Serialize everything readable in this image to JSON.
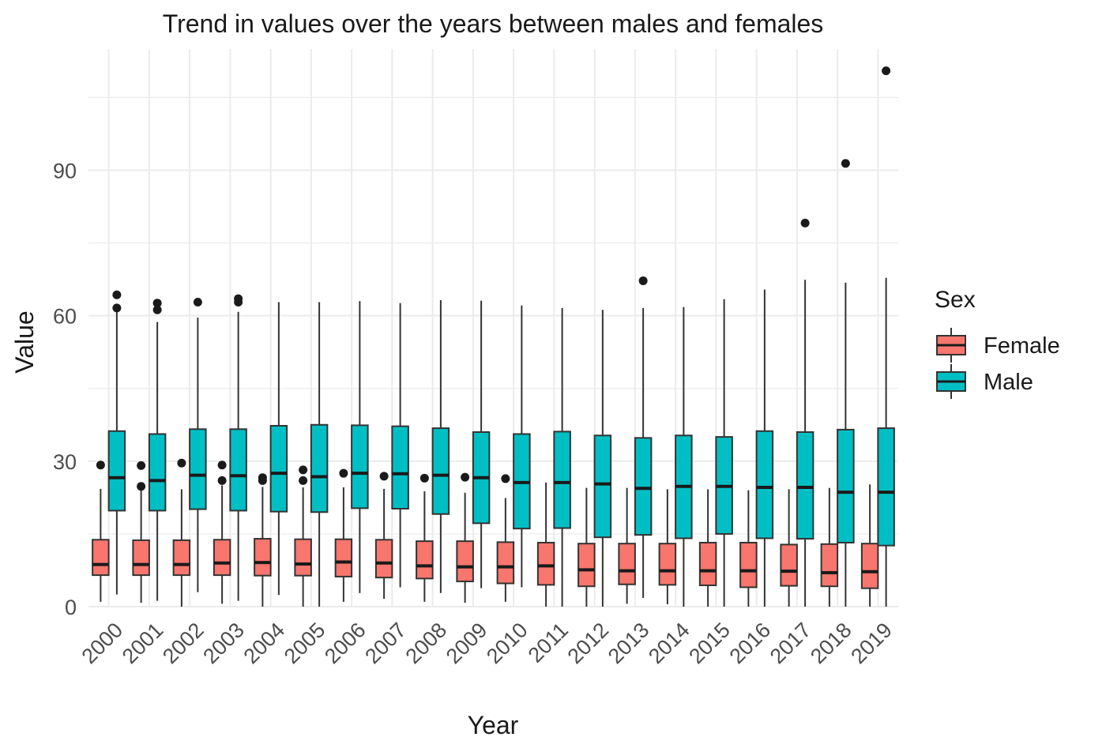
{
  "chart_data": {
    "type": "boxplot",
    "title": "Trend in values over the years between males and females",
    "xlabel": "Year",
    "ylabel": "Value",
    "ylim": [
      0,
      115
    ],
    "y_ticks": [
      0,
      30,
      60,
      90
    ],
    "y_tick_labels": [
      "0",
      "30",
      "60",
      "90"
    ],
    "grid": true,
    "legend": {
      "title": "Sex",
      "position": "right"
    },
    "categories": [
      "2000",
      "2001",
      "2002",
      "2003",
      "2004",
      "2005",
      "2006",
      "2007",
      "2008",
      "2009",
      "2010",
      "2011",
      "2012",
      "2013",
      "2014",
      "2015",
      "2016",
      "2017",
      "2018",
      "2019"
    ],
    "series": [
      {
        "name": "Female",
        "color": "#F8766D",
        "boxes": [
          {
            "lower": 1,
            "q1": 6.5,
            "median": 8.7,
            "q3": 13.8,
            "upper": 24.3,
            "outliers": [
              29.2
            ]
          },
          {
            "lower": 0.8,
            "q1": 6.5,
            "median": 8.7,
            "q3": 13.7,
            "upper": 24,
            "outliers": [
              29.1,
              24.8
            ]
          },
          {
            "lower": 0,
            "q1": 6.5,
            "median": 8.7,
            "q3": 13.7,
            "upper": 24.2,
            "outliers": [
              29.6
            ]
          },
          {
            "lower": 0.6,
            "q1": 6.5,
            "median": 9,
            "q3": 13.8,
            "upper": 25,
            "outliers": [
              29.2,
              26
            ]
          },
          {
            "lower": 0,
            "q1": 6.4,
            "median": 9.1,
            "q3": 14,
            "upper": 24.7,
            "outliers": [
              26.6,
              26
            ]
          },
          {
            "lower": 0,
            "q1": 6.4,
            "median": 8.8,
            "q3": 13.9,
            "upper": 24.6,
            "outliers": [
              28.2,
              26
            ]
          },
          {
            "lower": 1,
            "q1": 6.2,
            "median": 9.2,
            "q3": 13.9,
            "upper": 24.6,
            "outliers": [
              27.5
            ]
          },
          {
            "lower": 1.6,
            "q1": 6,
            "median": 9,
            "q3": 13.8,
            "upper": 24.3,
            "outliers": [
              26.9
            ]
          },
          {
            "lower": 1,
            "q1": 5.8,
            "median": 8.4,
            "q3": 13.5,
            "upper": 23.8,
            "outliers": [
              26.5
            ]
          },
          {
            "lower": 0.8,
            "q1": 5.2,
            "median": 8.2,
            "q3": 13.5,
            "upper": 23.5,
            "outliers": [
              26.7
            ]
          },
          {
            "lower": 1,
            "q1": 4.8,
            "median": 8.2,
            "q3": 13.3,
            "upper": 22.4,
            "outliers": [
              26.4
            ]
          },
          {
            "lower": 0,
            "q1": 4.5,
            "median": 8.4,
            "q3": 13.2,
            "upper": 25.6,
            "outliers": []
          },
          {
            "lower": 0,
            "q1": 4.2,
            "median": 7.6,
            "q3": 13,
            "upper": 24.5,
            "outliers": []
          },
          {
            "lower": 0.6,
            "q1": 4.6,
            "median": 7.4,
            "q3": 13,
            "upper": 24.5,
            "outliers": []
          },
          {
            "lower": 0.5,
            "q1": 4.5,
            "median": 7.4,
            "q3": 13,
            "upper": 24.2,
            "outliers": []
          },
          {
            "lower": 0,
            "q1": 4.4,
            "median": 7.4,
            "q3": 13.2,
            "upper": 24.2,
            "outliers": []
          },
          {
            "lower": 0,
            "q1": 4,
            "median": 7.4,
            "q3": 13.2,
            "upper": 24,
            "outliers": []
          },
          {
            "lower": 0,
            "q1": 4.3,
            "median": 7.3,
            "q3": 12.8,
            "upper": 24.2,
            "outliers": []
          },
          {
            "lower": 0,
            "q1": 4.2,
            "median": 7,
            "q3": 12.9,
            "upper": 24.5,
            "outliers": []
          },
          {
            "lower": 0,
            "q1": 3.8,
            "median": 7.2,
            "q3": 13,
            "upper": 25.2,
            "outliers": []
          }
        ]
      },
      {
        "name": "Male",
        "color": "#00BFC4",
        "boxes": [
          {
            "lower": 2.5,
            "q1": 19.8,
            "median": 26.6,
            "q3": 36.2,
            "upper": 61,
            "outliers": [
              64.3,
              61.6
            ]
          },
          {
            "lower": 1.2,
            "q1": 19.8,
            "median": 26,
            "q3": 35.6,
            "upper": 58.7,
            "outliers": [
              62.6,
              61.2
            ]
          },
          {
            "lower": 3,
            "q1": 20.1,
            "median": 27.1,
            "q3": 36.6,
            "upper": 59.6,
            "outliers": [
              62.8
            ]
          },
          {
            "lower": 1.2,
            "q1": 19.8,
            "median": 27,
            "q3": 36.6,
            "upper": 60.8,
            "outliers": [
              63.5,
              62.8
            ]
          },
          {
            "lower": 2.4,
            "q1": 19.6,
            "median": 27.5,
            "q3": 37.3,
            "upper": 62.8,
            "outliers": []
          },
          {
            "lower": 0,
            "q1": 19.5,
            "median": 26.8,
            "q3": 37.5,
            "upper": 62.8,
            "outliers": []
          },
          {
            "lower": 2.8,
            "q1": 20.3,
            "median": 27.5,
            "q3": 37.4,
            "upper": 63,
            "outliers": []
          },
          {
            "lower": 4,
            "q1": 20.2,
            "median": 27.4,
            "q3": 37.2,
            "upper": 62.6,
            "outliers": []
          },
          {
            "lower": 2.8,
            "q1": 19.1,
            "median": 27.1,
            "q3": 36.8,
            "upper": 63.2,
            "outliers": []
          },
          {
            "lower": 3.8,
            "q1": 17.2,
            "median": 26.6,
            "q3": 36,
            "upper": 63.1,
            "outliers": []
          },
          {
            "lower": 4,
            "q1": 16.1,
            "median": 25.6,
            "q3": 35.6,
            "upper": 62.1,
            "outliers": []
          },
          {
            "lower": 0,
            "q1": 16.2,
            "median": 25.6,
            "q3": 36.1,
            "upper": 61.6,
            "outliers": []
          },
          {
            "lower": 0,
            "q1": 14.3,
            "median": 25.3,
            "q3": 35.3,
            "upper": 61.2,
            "outliers": []
          },
          {
            "lower": 1.8,
            "q1": 14.8,
            "median": 24.4,
            "q3": 34.8,
            "upper": 61.6,
            "outliers": [
              67.2
            ]
          },
          {
            "lower": 0,
            "q1": 14.1,
            "median": 24.8,
            "q3": 35.3,
            "upper": 61.8,
            "outliers": []
          },
          {
            "lower": 0,
            "q1": 15,
            "median": 24.8,
            "q3": 35,
            "upper": 63.4,
            "outliers": []
          },
          {
            "lower": 0,
            "q1": 14.1,
            "median": 24.6,
            "q3": 36.2,
            "upper": 65.4,
            "outliers": []
          },
          {
            "lower": 0,
            "q1": 14,
            "median": 24.6,
            "q3": 36,
            "upper": 67.4,
            "outliers": [
              79.1
            ]
          },
          {
            "lower": 0,
            "q1": 13.2,
            "median": 23.6,
            "q3": 36.5,
            "upper": 66.8,
            "outliers": [
              91.4
            ]
          },
          {
            "lower": 0,
            "q1": 12.6,
            "median": 23.6,
            "q3": 36.8,
            "upper": 67.8,
            "outliers": [
              110.5
            ]
          }
        ]
      }
    ]
  }
}
